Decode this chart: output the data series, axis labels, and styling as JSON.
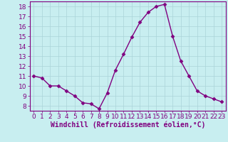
{
  "x": [
    0,
    1,
    2,
    3,
    4,
    5,
    6,
    7,
    8,
    9,
    10,
    11,
    12,
    13,
    14,
    15,
    16,
    17,
    18,
    19,
    20,
    21,
    22,
    23
  ],
  "y": [
    11,
    10.8,
    10,
    10,
    9.5,
    9,
    8.3,
    8.2,
    7.7,
    9.3,
    11.6,
    13.2,
    14.9,
    16.4,
    17.4,
    18.0,
    18.2,
    15.0,
    12.5,
    11.0,
    9.5,
    9.0,
    8.7,
    8.4
  ],
  "line_color": "#800080",
  "marker": "D",
  "marker_size": 2.5,
  "xlabel": "Windchill (Refroidissement éolien,°C)",
  "xlim": [
    -0.5,
    23.5
  ],
  "ylim": [
    7.5,
    18.5
  ],
  "yticks": [
    8,
    9,
    10,
    11,
    12,
    13,
    14,
    15,
    16,
    17,
    18
  ],
  "xticks": [
    0,
    1,
    2,
    3,
    4,
    5,
    6,
    7,
    8,
    9,
    10,
    11,
    12,
    13,
    14,
    15,
    16,
    17,
    18,
    19,
    20,
    21,
    22,
    23
  ],
  "bg_color": "#c8eef0",
  "grid_color": "#aad4d8",
  "line_width": 1.0,
  "font_color": "#800080",
  "font_size": 6.5,
  "xlabel_fontsize": 7,
  "spine_color": "#800080"
}
